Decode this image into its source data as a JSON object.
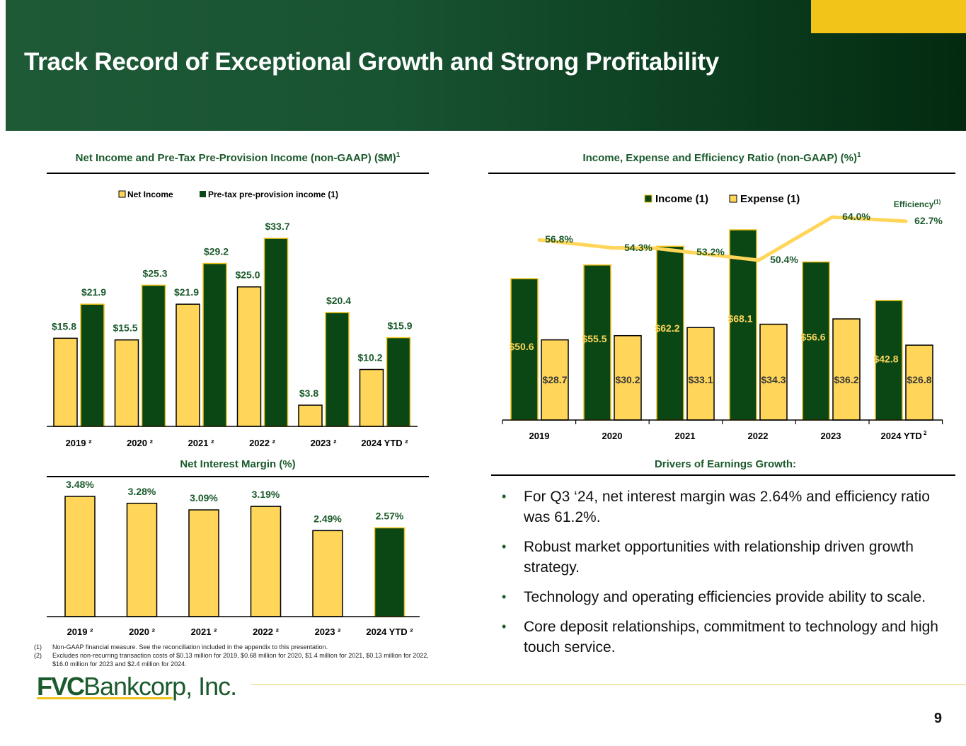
{
  "header": {
    "title": "Track Record of Exceptional Growth and Strong Profitability"
  },
  "colors": {
    "dark_green": "#0a4714",
    "gold": "#ffd55a",
    "title_green": "#1b5a2c",
    "accent_yellow": "#f2c318"
  },
  "chart_data": [
    {
      "id": "net-income-pppi",
      "type": "bar",
      "title": "Net Income and Pre-Tax Pre-Provision Income (non-GAAP) ($M)",
      "title_sup": "1",
      "categories": [
        "2019 ²",
        "2020 ²",
        "2021 ²",
        "2022 ²",
        "2023 ²",
        "2024 YTD ²"
      ],
      "series": [
        {
          "name": "Net Income",
          "values": [
            15.8,
            15.5,
            21.9,
            25.0,
            3.8,
            10.2
          ],
          "labels": [
            "$15.8",
            "$15.5",
            "$21.9",
            "$25.0",
            "$3.8",
            "$10.2"
          ],
          "color": "#ffd55a"
        },
        {
          "name": "Pre-tax pre-provision income (1)",
          "values": [
            21.9,
            25.3,
            29.2,
            33.7,
            20.4,
            15.9
          ],
          "labels": [
            "$21.9",
            "$25.3",
            "$29.2",
            "$33.7",
            "$20.4",
            "$15.9"
          ],
          "color": "#0a4714"
        }
      ],
      "legend": "top-center",
      "ylim": [
        0,
        40
      ],
      "grid": false
    },
    {
      "id": "income-expense-efficiency",
      "type": "bar",
      "title": "Income, Expense and Efficiency Ratio (non-GAAP) (%)",
      "title_sup": "1",
      "categories": [
        "2019",
        "2020",
        "2021",
        "2022",
        "2023",
        "2024 YTD"
      ],
      "last_category_sup": "2",
      "series": [
        {
          "name": "Income (1)",
          "values": [
            50.6,
            55.5,
            62.2,
            68.1,
            56.6,
            42.8
          ],
          "labels": [
            "$50.6",
            "$55.5",
            "$62.2",
            "$68.1",
            "$56.6",
            "$42.8"
          ],
          "color": "#0a4714"
        },
        {
          "name": "Expense (1)",
          "values": [
            28.7,
            30.2,
            33.1,
            34.3,
            36.2,
            26.8
          ],
          "labels": [
            "$28.7",
            "$30.2",
            "$33.1",
            "$34.3",
            "$36.2",
            "$26.8"
          ],
          "color": "#ffd55a"
        }
      ],
      "line_series": {
        "name": "Efficiency",
        "name_sup": "(1)",
        "values": [
          56.8,
          54.3,
          53.2,
          50.4,
          64.0,
          62.7
        ],
        "labels": [
          "56.8%",
          "54.3%",
          "53.2%",
          "50.4%",
          "64.0%",
          "62.7%"
        ],
        "color": "#ffd55a",
        "ylim": [
          30,
          70
        ]
      },
      "legend": "top-center",
      "ylim": [
        0,
        75
      ],
      "grid": false
    },
    {
      "id": "net-interest-margin",
      "type": "bar",
      "title": "Net Interest Margin (%)",
      "categories": [
        "2019 ²",
        "2020 ²",
        "2021 ²",
        "2022 ²",
        "2023 ²",
        "2024 YTD ²"
      ],
      "series": [
        {
          "name": "Net Interest Margin",
          "values": [
            3.48,
            3.28,
            3.09,
            3.19,
            2.49,
            2.57
          ],
          "labels": [
            "3.48%",
            "3.28%",
            "3.09%",
            "3.19%",
            "2.49%",
            "2.57%"
          ],
          "color": "#ffd55a",
          "highlight_last_color": "#0a4714"
        }
      ],
      "ylim": [
        0,
        3.6
      ],
      "grid": false
    }
  ],
  "drivers": {
    "title": "Drivers of Earnings Growth:",
    "bullet_glyph": "•",
    "items": [
      "For Q3 ‘24, net interest margin was 2.64% and efficiency ratio was 61.2%.",
      "Robust market opportunities with relationship driven growth strategy.",
      "Technology and operating efficiencies provide ability to scale.",
      "Core deposit relationships, commitment to technology and high touch service."
    ]
  },
  "footnotes": [
    {
      "num": "(1)",
      "text": "Non-GAAP financial measure. See the reconciliation included in the appendix to this presentation."
    },
    {
      "num": "(2)",
      "text": "Excludes non-recurring transaction costs of $0.13 million for 2019,  $0.68 million for 2020,  $1.4 million for 2021, $0.13 million for 2022,  $16.0 million for 2023 and $2.4 million for 2024."
    }
  ],
  "logo": {
    "bold": "FVC",
    "rest": "Bankcorp, Inc."
  },
  "page_number": "9"
}
